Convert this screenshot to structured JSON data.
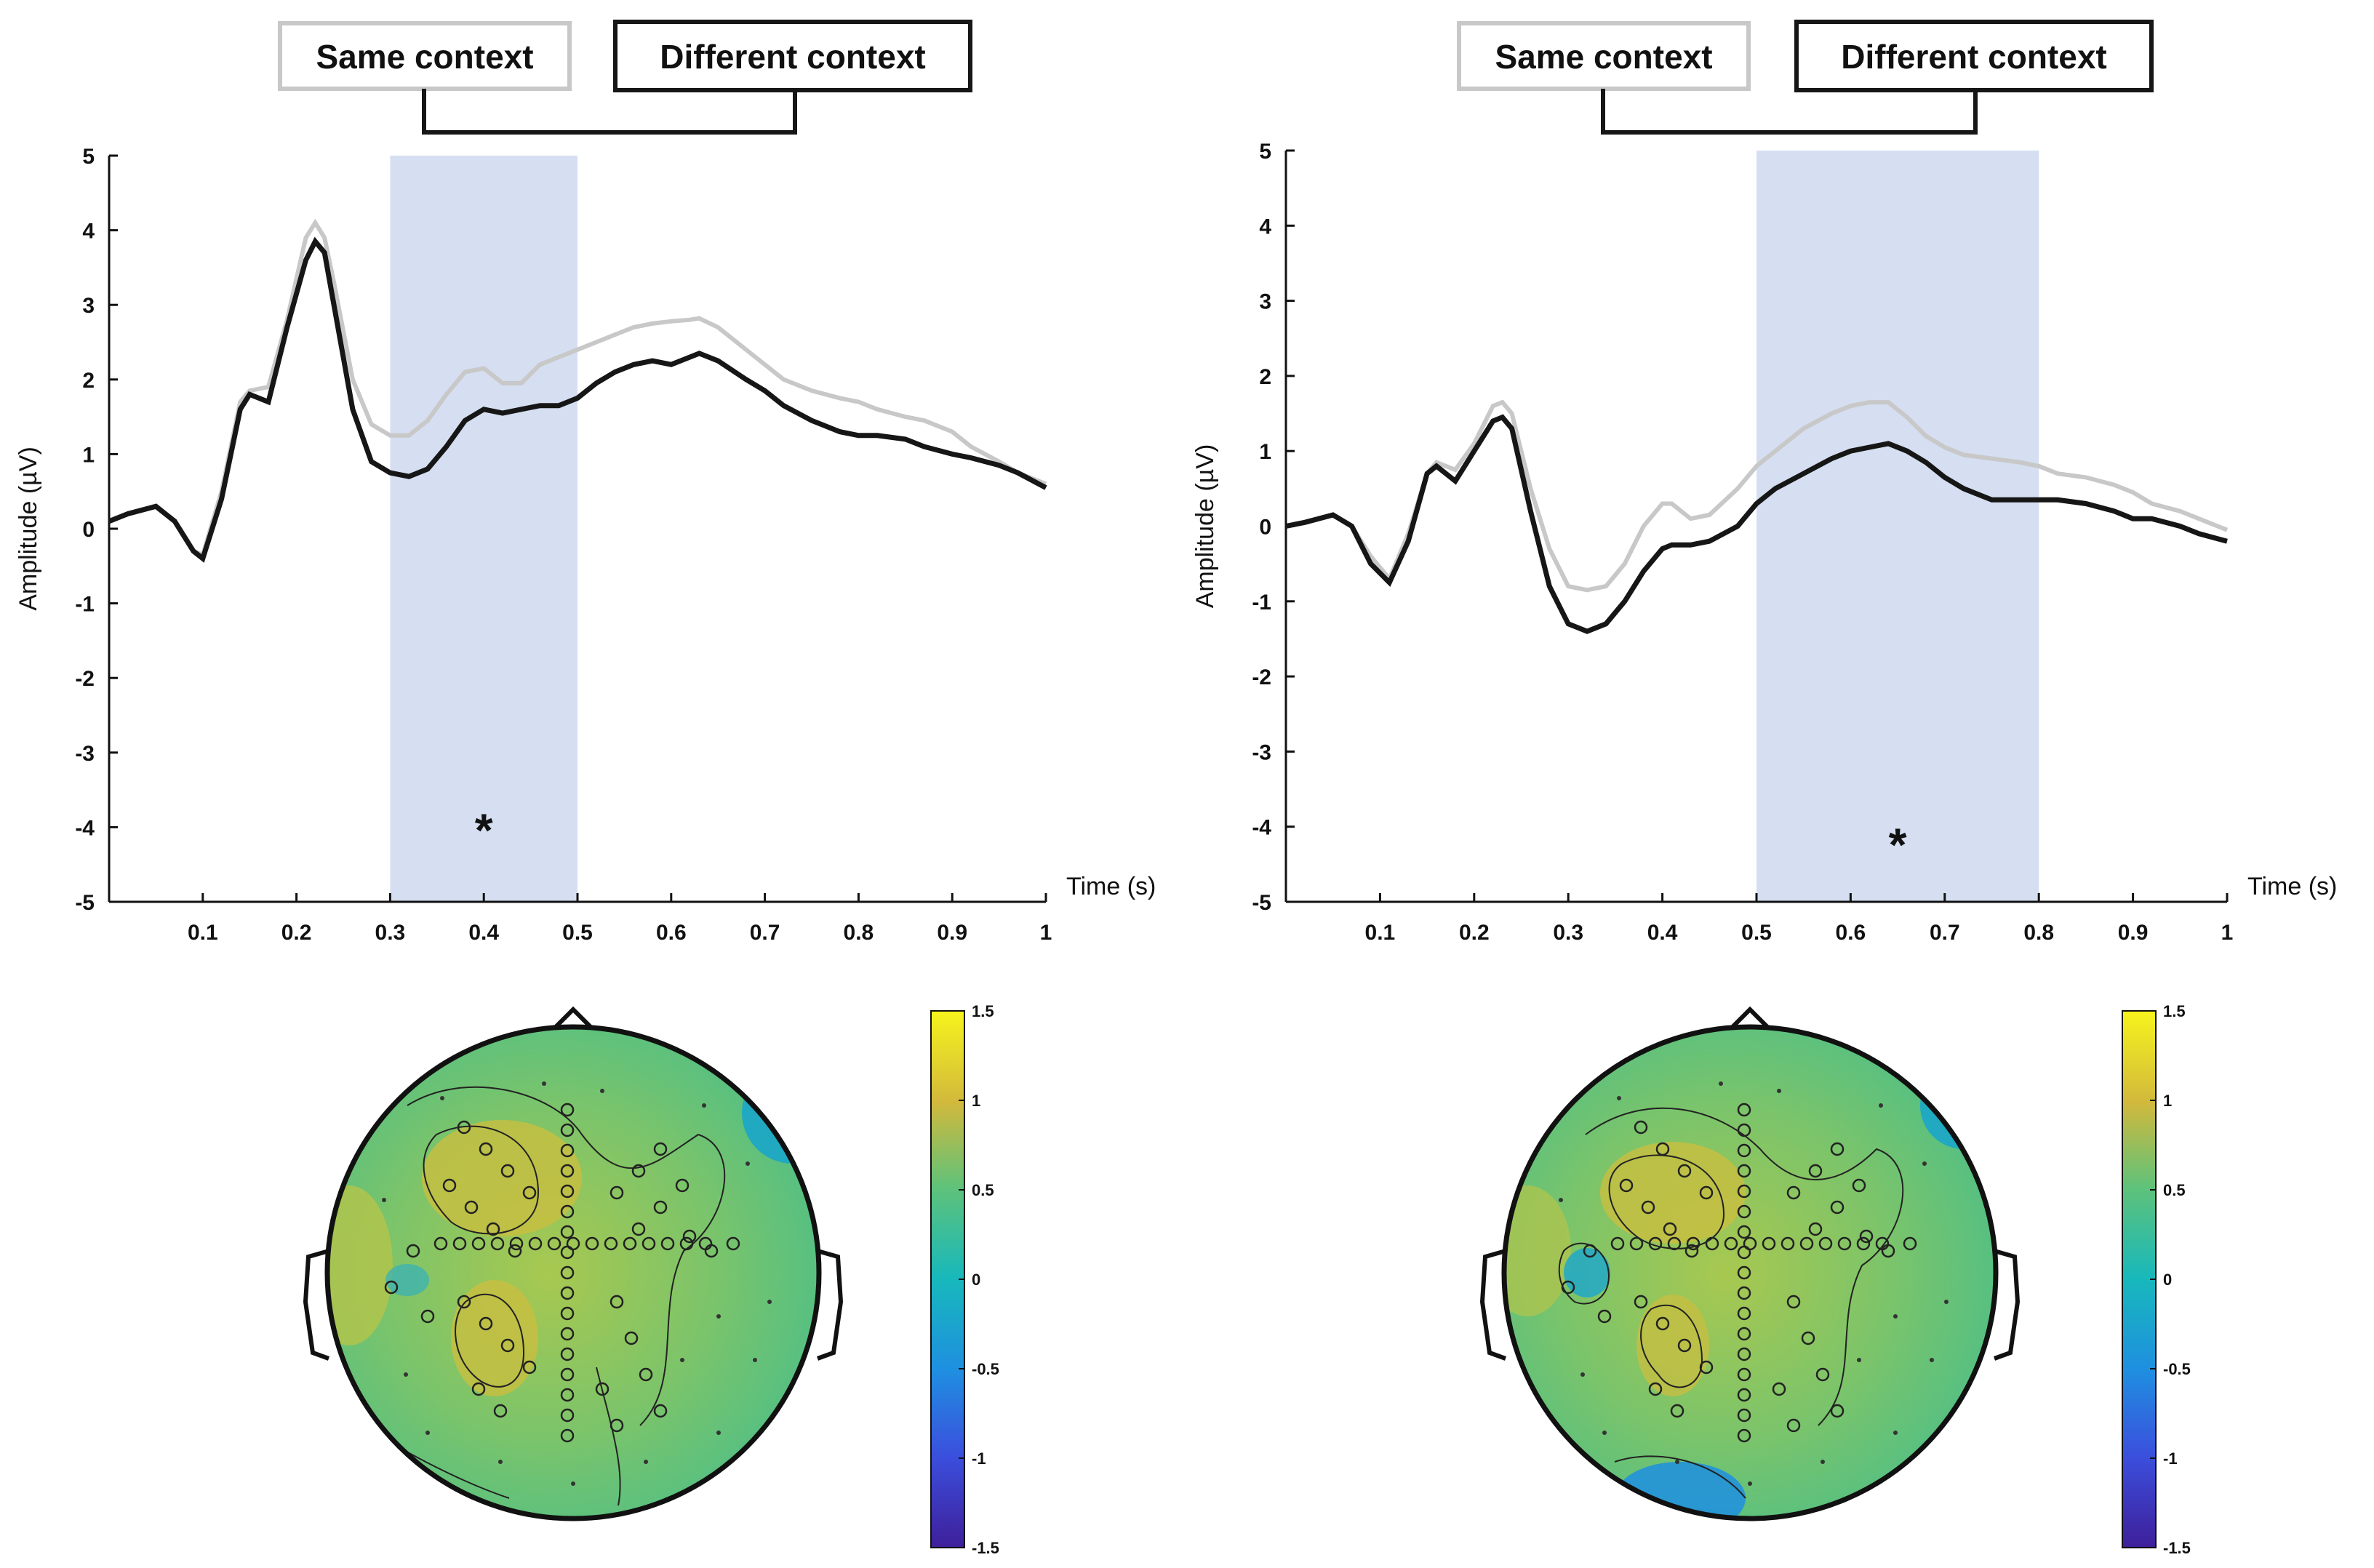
{
  "colors": {
    "same_context": "#c8c8c8",
    "different_context": "#161616",
    "highlight": "#d5dff1",
    "axis": "#111111"
  },
  "chart_data": [
    {
      "type": "line",
      "panel": "left",
      "xlabel": "Time (s)",
      "ylabel": "Amplitude (µV)",
      "xlim": [
        0,
        1
      ],
      "ylim": [
        -5,
        5
      ],
      "xticks": [
        "0.1",
        "0.2",
        "0.3",
        "0.4",
        "0.5",
        "0.6",
        "0.7",
        "0.8",
        "0.9",
        "1"
      ],
      "yticks": [
        "-5",
        "-4",
        "-3",
        "-2",
        "-1",
        "0",
        "1",
        "2",
        "3",
        "4",
        "5"
      ],
      "legend": [
        "Same context",
        "Different context"
      ],
      "highlight_window": [
        0.3,
        0.5
      ],
      "significance_marker": "*",
      "significance_x": 0.4,
      "significance_y": -4,
      "series": [
        {
          "name": "Same context",
          "x": [
            0,
            0.02,
            0.05,
            0.07,
            0.09,
            0.1,
            0.12,
            0.14,
            0.15,
            0.17,
            0.19,
            0.21,
            0.22,
            0.23,
            0.24,
            0.26,
            0.28,
            0.3,
            0.32,
            0.34,
            0.36,
            0.38,
            0.4,
            0.42,
            0.44,
            0.46,
            0.48,
            0.5,
            0.52,
            0.54,
            0.56,
            0.58,
            0.6,
            0.62,
            0.63,
            0.65,
            0.68,
            0.7,
            0.72,
            0.75,
            0.78,
            0.8,
            0.82,
            0.85,
            0.87,
            0.9,
            0.92,
            0.95,
            0.97,
            1
          ],
          "values": [
            0.1,
            0.2,
            0.3,
            0.1,
            -0.3,
            -0.35,
            0.5,
            1.7,
            1.85,
            1.9,
            2.8,
            3.9,
            4.1,
            3.9,
            3.3,
            2.0,
            1.4,
            1.25,
            1.25,
            1.45,
            1.8,
            2.1,
            2.15,
            1.95,
            1.95,
            2.2,
            2.3,
            2.4,
            2.5,
            2.6,
            2.7,
            2.75,
            2.78,
            2.8,
            2.82,
            2.7,
            2.4,
            2.2,
            2.0,
            1.85,
            1.75,
            1.7,
            1.6,
            1.5,
            1.45,
            1.3,
            1.1,
            0.9,
            0.75,
            0.6
          ]
        },
        {
          "name": "Different context",
          "x": [
            0,
            0.02,
            0.05,
            0.07,
            0.09,
            0.1,
            0.12,
            0.14,
            0.15,
            0.17,
            0.19,
            0.21,
            0.22,
            0.23,
            0.24,
            0.26,
            0.28,
            0.3,
            0.32,
            0.34,
            0.36,
            0.38,
            0.4,
            0.42,
            0.44,
            0.46,
            0.48,
            0.5,
            0.52,
            0.54,
            0.56,
            0.58,
            0.6,
            0.62,
            0.63,
            0.65,
            0.68,
            0.7,
            0.72,
            0.75,
            0.78,
            0.8,
            0.82,
            0.85,
            0.87,
            0.9,
            0.92,
            0.95,
            0.97,
            1
          ],
          "values": [
            0.1,
            0.2,
            0.3,
            0.1,
            -0.3,
            -0.4,
            0.4,
            1.6,
            1.8,
            1.7,
            2.7,
            3.6,
            3.85,
            3.7,
            3.0,
            1.6,
            0.9,
            0.75,
            0.7,
            0.8,
            1.1,
            1.45,
            1.6,
            1.55,
            1.6,
            1.65,
            1.65,
            1.75,
            1.95,
            2.1,
            2.2,
            2.25,
            2.2,
            2.3,
            2.35,
            2.25,
            2.0,
            1.85,
            1.65,
            1.45,
            1.3,
            1.25,
            1.25,
            1.2,
            1.1,
            1.0,
            0.95,
            0.85,
            0.75,
            0.55
          ]
        }
      ]
    },
    {
      "type": "line",
      "panel": "right",
      "xlabel": "Time (s)",
      "ylabel": "Amplitude (µV)",
      "xlim": [
        0,
        1
      ],
      "ylim": [
        -5,
        5
      ],
      "xticks": [
        "0.1",
        "0.2",
        "0.3",
        "0.4",
        "0.5",
        "0.6",
        "0.7",
        "0.8",
        "0.9",
        "1"
      ],
      "yticks": [
        "-5",
        "-4",
        "-3",
        "-2",
        "-1",
        "0",
        "1",
        "2",
        "3",
        "4",
        "5"
      ],
      "legend": [
        "Same context",
        "Different context"
      ],
      "highlight_window": [
        0.5,
        0.8
      ],
      "significance_marker": "*",
      "significance_x": 0.65,
      "significance_y": -4.2,
      "series": [
        {
          "name": "Same context",
          "x": [
            0,
            0.02,
            0.05,
            0.07,
            0.09,
            0.11,
            0.13,
            0.15,
            0.16,
            0.18,
            0.2,
            0.22,
            0.23,
            0.24,
            0.26,
            0.28,
            0.3,
            0.32,
            0.34,
            0.36,
            0.38,
            0.4,
            0.41,
            0.43,
            0.45,
            0.48,
            0.5,
            0.52,
            0.55,
            0.58,
            0.6,
            0.62,
            0.64,
            0.66,
            0.68,
            0.7,
            0.72,
            0.75,
            0.78,
            0.8,
            0.82,
            0.85,
            0.88,
            0.9,
            0.92,
            0.95,
            0.97,
            1
          ],
          "values": [
            0.0,
            0.05,
            0.15,
            0.0,
            -0.4,
            -0.7,
            -0.1,
            0.7,
            0.85,
            0.75,
            1.1,
            1.6,
            1.65,
            1.5,
            0.5,
            -0.3,
            -0.8,
            -0.85,
            -0.8,
            -0.5,
            0.0,
            0.3,
            0.3,
            0.1,
            0.15,
            0.5,
            0.8,
            1.0,
            1.3,
            1.5,
            1.6,
            1.65,
            1.65,
            1.45,
            1.2,
            1.05,
            0.95,
            0.9,
            0.85,
            0.8,
            0.7,
            0.65,
            0.55,
            0.45,
            0.3,
            0.2,
            0.1,
            -0.05
          ]
        },
        {
          "name": "Different context",
          "x": [
            0,
            0.02,
            0.05,
            0.07,
            0.09,
            0.11,
            0.13,
            0.15,
            0.16,
            0.18,
            0.2,
            0.22,
            0.23,
            0.24,
            0.26,
            0.28,
            0.3,
            0.32,
            0.34,
            0.36,
            0.38,
            0.4,
            0.41,
            0.43,
            0.45,
            0.48,
            0.5,
            0.52,
            0.55,
            0.58,
            0.6,
            0.62,
            0.64,
            0.66,
            0.68,
            0.7,
            0.72,
            0.75,
            0.78,
            0.8,
            0.82,
            0.85,
            0.88,
            0.9,
            0.92,
            0.95,
            0.97,
            1
          ],
          "values": [
            0.0,
            0.05,
            0.15,
            0.0,
            -0.5,
            -0.75,
            -0.2,
            0.7,
            0.8,
            0.6,
            1.0,
            1.4,
            1.45,
            1.3,
            0.2,
            -0.8,
            -1.3,
            -1.4,
            -1.3,
            -1.0,
            -0.6,
            -0.3,
            -0.25,
            -0.25,
            -0.2,
            0.0,
            0.3,
            0.5,
            0.7,
            0.9,
            1.0,
            1.05,
            1.1,
            1.0,
            0.85,
            0.65,
            0.5,
            0.35,
            0.35,
            0.35,
            0.35,
            0.3,
            0.2,
            0.1,
            0.1,
            0.0,
            -0.1,
            -0.2
          ]
        }
      ]
    },
    {
      "type": "heatmap",
      "panel": "left-topography",
      "colorbar_ticks": [
        "1.5",
        "1",
        "0.5",
        "0",
        "-0.5",
        "-1",
        "-1.5"
      ],
      "colorbar_range": [
        -1.5,
        1.5
      ]
    },
    {
      "type": "heatmap",
      "panel": "right-topography",
      "colorbar_ticks": [
        "1.5",
        "1",
        "0.5",
        "0",
        "-0.5",
        "-1",
        "-1.5"
      ],
      "colorbar_range": [
        -1.5,
        1.5
      ]
    }
  ]
}
